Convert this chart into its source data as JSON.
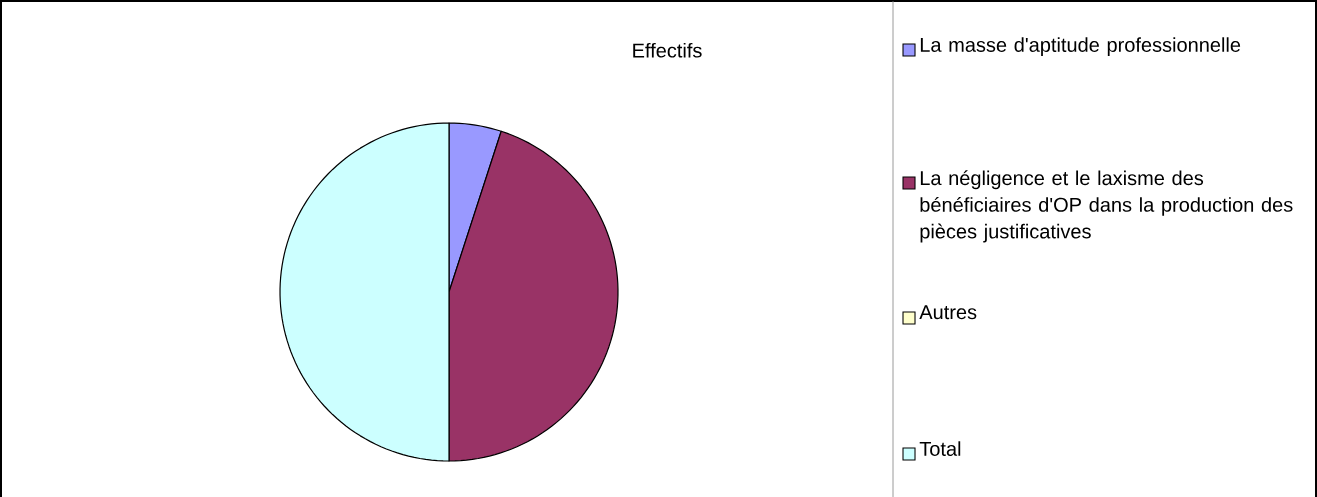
{
  "chart_data": {
    "type": "pie",
    "title": "Effectifs",
    "categories": [
      "La masse d'aptitude professionnelle",
      "La négligence et le laxisme des bénéficiaires d'OP dans la production des pièces justificatives",
      "Autres",
      "Total"
    ],
    "values": [
      5,
      45,
      0,
      50
    ],
    "colors": [
      "#9999ff",
      "#993366",
      "#ffffcc",
      "#ccffff"
    ],
    "legend": "right"
  }
}
